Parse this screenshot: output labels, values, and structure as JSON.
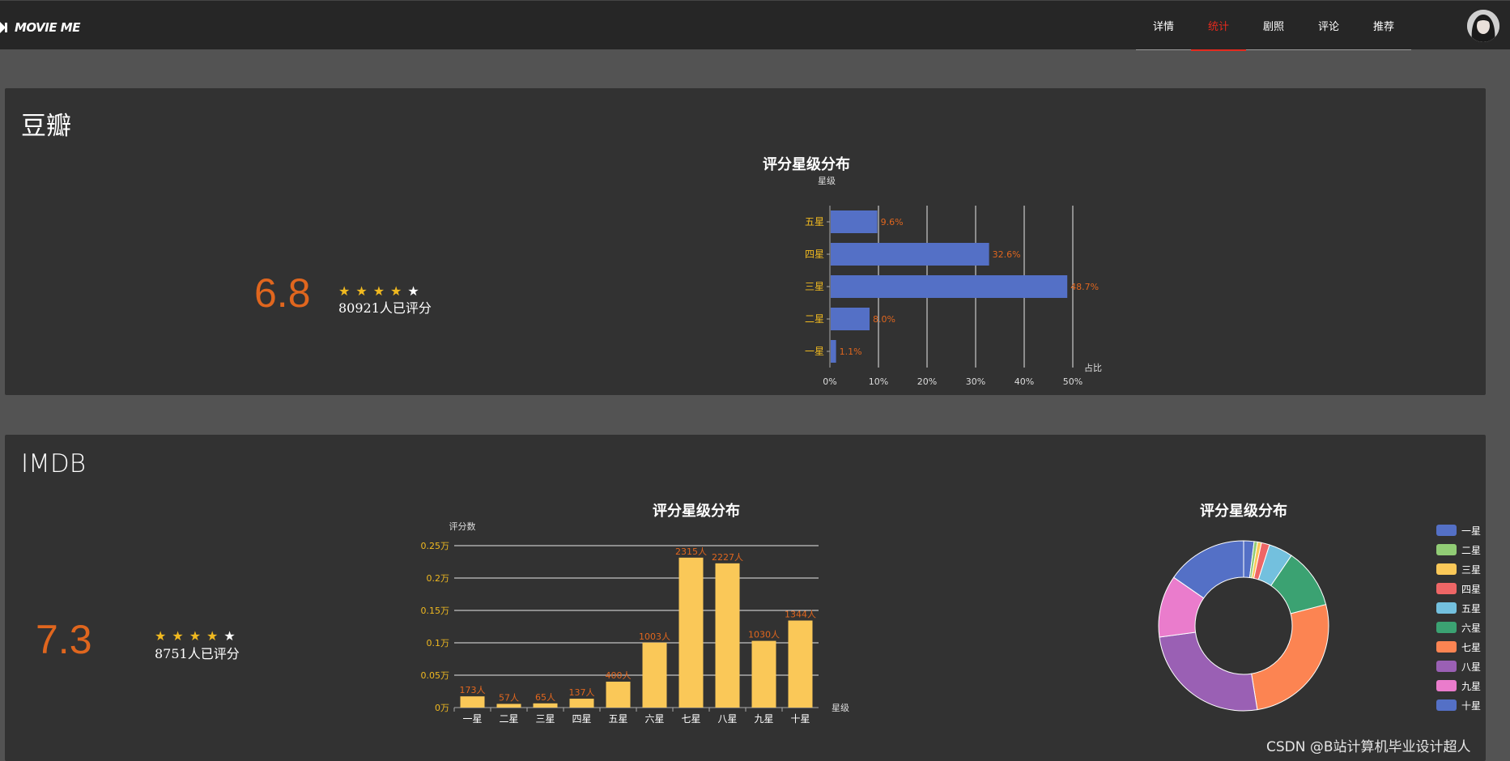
{
  "app": {
    "logo_text": "MOVIE ME"
  },
  "nav": {
    "items": [
      {
        "label": "详情",
        "active": false
      },
      {
        "label": "统计",
        "active": true
      },
      {
        "label": "剧照",
        "active": false
      },
      {
        "label": "评论",
        "active": false
      },
      {
        "label": "推荐",
        "active": false
      }
    ]
  },
  "douban": {
    "title": "豆瓣",
    "score": "6.8",
    "stars_filled": 4,
    "stars_total": 5,
    "rated_text": "80921人已评分"
  },
  "imdb": {
    "title": "IMDB",
    "score": "7.3",
    "stars_filled": 4,
    "stars_total": 5,
    "rated_text": "8751人已评分"
  },
  "colors": {
    "bar_blue": "#5470c6",
    "bar_yellow": "#fac858",
    "label_orange": "#e0661e",
    "nav_active": "#e52a1e",
    "star_gold": "#f0b920"
  },
  "watermark": "CSDN @B站计算机毕业设计超人",
  "chart_data": [
    {
      "type": "bar",
      "orientation": "horizontal",
      "title": "评分星级分布",
      "ylabel": "星级",
      "xlabel": "占比",
      "categories": [
        "五星",
        "四星",
        "三星",
        "二星",
        "一星"
      ],
      "values": [
        9.6,
        32.6,
        48.7,
        8.0,
        1.1
      ],
      "value_labels": [
        "9.6%",
        "32.6%",
        "48.7%",
        "8.0%",
        "1.1%"
      ],
      "xlim": [
        0,
        50
      ],
      "x_ticks": [
        "0%",
        "10%",
        "20%",
        "30%",
        "40%",
        "50%"
      ],
      "grid": true,
      "legend": "none"
    },
    {
      "type": "bar",
      "title": "评分星级分布",
      "ylabel": "评分数",
      "xlabel": "星级",
      "categories": [
        "一星",
        "二星",
        "三星",
        "四星",
        "五星",
        "六星",
        "七星",
        "八星",
        "九星",
        "十星"
      ],
      "values": [
        173,
        57,
        65,
        137,
        400,
        1003,
        2315,
        2227,
        1030,
        1344
      ],
      "value_labels": [
        "173人",
        "57人",
        "65人",
        "137人",
        "400人",
        "1003人",
        "2315人",
        "2227人",
        "1030人",
        "1344人"
      ],
      "ylim": [
        0,
        2500
      ],
      "y_ticks": [
        "0万",
        "0.05万",
        "0.1万",
        "0.15万",
        "0.2万",
        "0.25万"
      ],
      "grid": true,
      "legend": "none"
    },
    {
      "type": "pie",
      "donut": true,
      "title": "评分星级分布",
      "categories": [
        "一星",
        "二星",
        "三星",
        "四星",
        "五星",
        "六星",
        "七星",
        "八星",
        "九星",
        "十星"
      ],
      "values": [
        173,
        57,
        65,
        137,
        400,
        1003,
        2315,
        2227,
        1030,
        1344
      ],
      "colors": [
        "#5470c6",
        "#91cc75",
        "#fac858",
        "#ee6666",
        "#73c0de",
        "#3ba272",
        "#fc8452",
        "#9a60b4",
        "#ea7ccc",
        "#5470c6"
      ],
      "legend": "right"
    }
  ]
}
